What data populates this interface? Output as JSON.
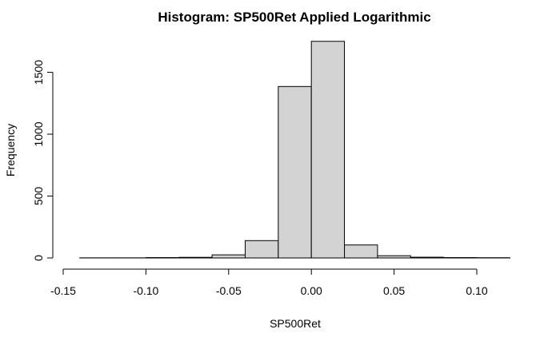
{
  "chart_data": {
    "type": "bar",
    "title": "Histogram: SP500Ret Applied Logarithmic",
    "xlabel": "SP500Ret",
    "ylabel": "Frequency",
    "xlim": [
      -0.15,
      0.12
    ],
    "ylim": [
      0,
      1750
    ],
    "x_ticks": [
      -0.15,
      -0.1,
      -0.05,
      0.0,
      0.05,
      0.1
    ],
    "x_tick_labels": [
      "-0.15",
      "-0.10",
      "-0.05",
      "0.00",
      "0.05",
      "0.10"
    ],
    "y_ticks": [
      0,
      500,
      1000,
      1500
    ],
    "y_tick_labels": [
      "0",
      "500",
      "1000",
      "1500"
    ],
    "bins": [
      {
        "start": -0.14,
        "end": -0.12,
        "count": 1
      },
      {
        "start": -0.12,
        "end": -0.1,
        "count": 1
      },
      {
        "start": -0.1,
        "end": -0.08,
        "count": 3
      },
      {
        "start": -0.08,
        "end": -0.06,
        "count": 5
      },
      {
        "start": -0.06,
        "end": -0.04,
        "count": 25
      },
      {
        "start": -0.04,
        "end": -0.02,
        "count": 140
      },
      {
        "start": -0.02,
        "end": 0.0,
        "count": 1385
      },
      {
        "start": 0.0,
        "end": 0.02,
        "count": 1750
      },
      {
        "start": 0.02,
        "end": 0.04,
        "count": 105
      },
      {
        "start": 0.04,
        "end": 0.06,
        "count": 18
      },
      {
        "start": 0.06,
        "end": 0.08,
        "count": 6
      },
      {
        "start": 0.08,
        "end": 0.1,
        "count": 3
      },
      {
        "start": 0.1,
        "end": 0.12,
        "count": 2
      }
    ],
    "grid": false,
    "legend": "none"
  }
}
